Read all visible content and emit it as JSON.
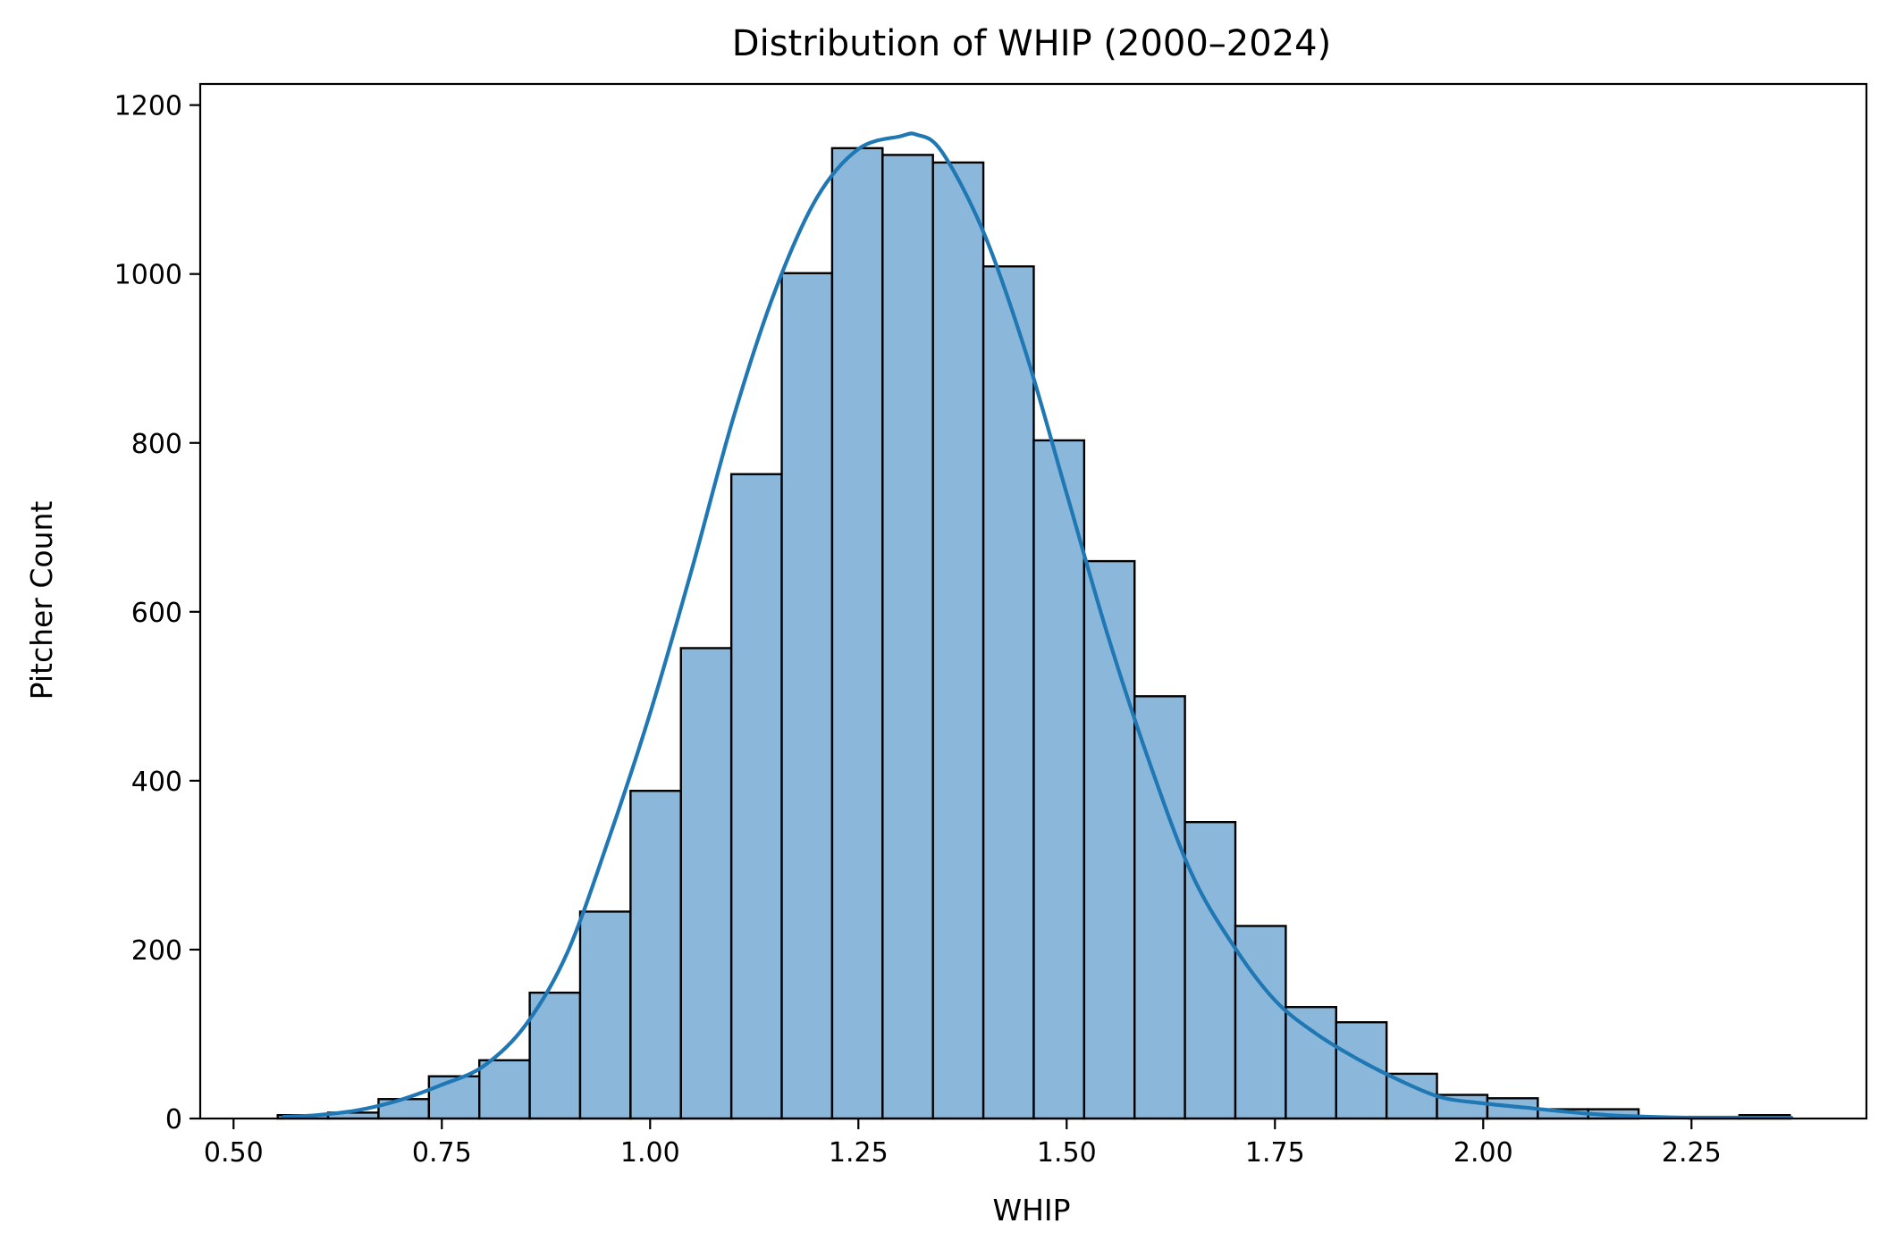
{
  "chart_data": {
    "type": "bar",
    "title": "Distribution of WHIP (2000–2024)",
    "xlabel": "WHIP",
    "ylabel": "Pitcher Count",
    "xlim": [
      0.46,
      2.46
    ],
    "ylim": [
      0,
      1225
    ],
    "xticks": [
      0.5,
      0.75,
      1.0,
      1.25,
      1.5,
      1.75,
      2.0,
      2.25
    ],
    "xtick_labels": [
      "0.50",
      "0.75",
      "1.00",
      "1.25",
      "1.50",
      "1.75",
      "2.00",
      "2.25"
    ],
    "yticks": [
      0,
      200,
      400,
      600,
      800,
      1000,
      1200
    ],
    "ytick_labels": [
      "0",
      "200",
      "400",
      "600",
      "800",
      "1000",
      "1200"
    ],
    "grid": false,
    "legend": "none",
    "bin_start": 0.553,
    "bin_width": 0.0605,
    "counts": [
      4,
      7,
      23,
      50,
      69,
      149,
      245,
      388,
      557,
      763,
      1001,
      1149,
      1141,
      1132,
      1009,
      803,
      660,
      500,
      351,
      228,
      132,
      114,
      53,
      28,
      24,
      11,
      11,
      0,
      2,
      4
    ],
    "kde": {
      "x": [
        0.56,
        0.6,
        0.65,
        0.7,
        0.75,
        0.8,
        0.85,
        0.9,
        0.95,
        1.0,
        1.05,
        1.1,
        1.15,
        1.2,
        1.25,
        1.3,
        1.32,
        1.35,
        1.4,
        1.45,
        1.5,
        1.55,
        1.6,
        1.65,
        1.7,
        1.75,
        1.8,
        1.85,
        1.9,
        1.95,
        2.0,
        2.05,
        2.1,
        2.15,
        2.2,
        2.25,
        2.3,
        2.37
      ],
      "y": [
        2,
        4,
        10,
        22,
        40,
        62,
        110,
        195,
        330,
        480,
        650,
        830,
        980,
        1090,
        1148,
        1163,
        1165,
        1145,
        1050,
        910,
        740,
        570,
        420,
        290,
        205,
        140,
        100,
        70,
        45,
        25,
        18,
        13,
        8,
        4,
        2,
        1,
        1,
        1
      ]
    },
    "colors": {
      "bar_fill": "#8bb8da",
      "bar_edge": "#000000",
      "kde_line": "#1f77b4",
      "axes": "#000000"
    }
  }
}
